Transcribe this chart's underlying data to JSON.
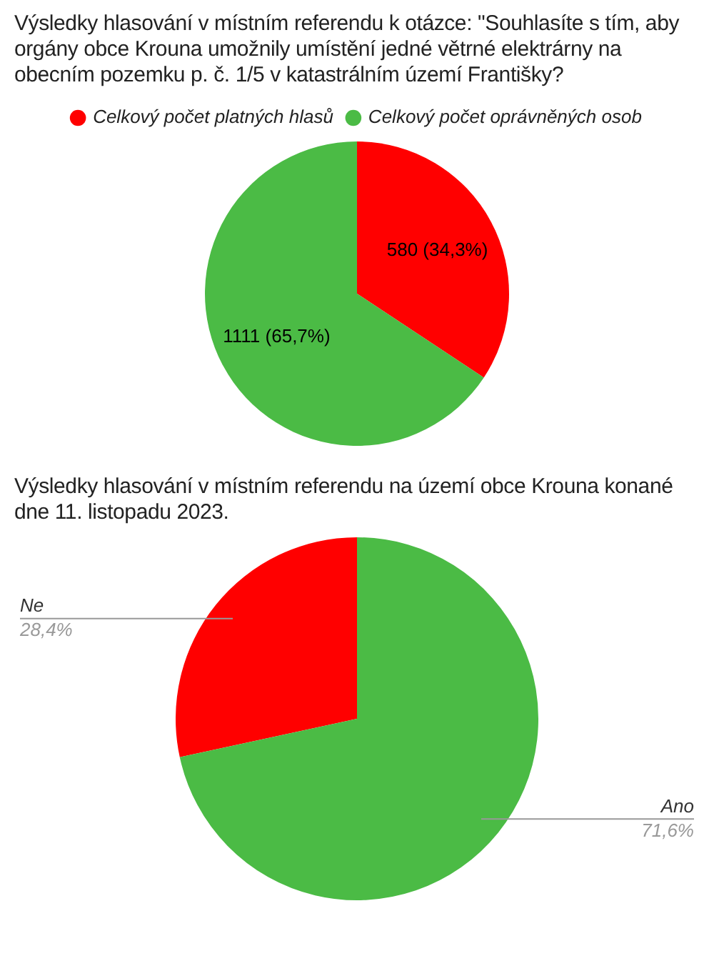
{
  "chart_data": [
    {
      "type": "pie",
      "title": "Výsledky hlasování v místním referendu k otázce: \"Souhlasíte s tím, aby orgány obce Krouna umožnily umístění jedné větrné elektrárny na obecním pozemku p. č. 1/5 v katastrálním území Františky?",
      "categories": [
        "Celkový počet platných hlasů",
        "Celkový počet oprávněných osob"
      ],
      "values": [
        580,
        1111
      ],
      "colors": [
        "#ff0000",
        "#4bbb45"
      ],
      "value_labels": [
        "580 (34,3%)",
        "1111 (65,7%)"
      ],
      "legend": "top"
    },
    {
      "type": "pie",
      "title": "Výsledky hlasování v místním referendu na území obce Krouna konané dne 11. listopadu 2023.",
      "categories": [
        "Ne",
        "Ano"
      ],
      "values": [
        28.4,
        71.6
      ],
      "colors": [
        "#ff0000",
        "#4bbb45"
      ],
      "value_labels": [
        "28,4%",
        "71,6%"
      ]
    }
  ]
}
